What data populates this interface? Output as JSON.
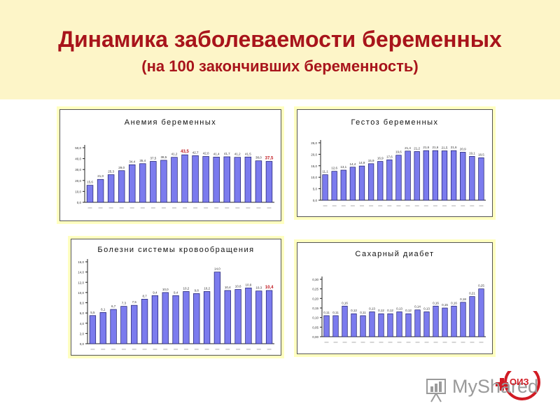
{
  "page": {
    "title": "Динамика заболеваемости беременных",
    "subtitle": "(на 100 закончивших беременность)"
  },
  "watermark": {
    "text": "MyShared",
    "logo_text": "ОИЗ"
  },
  "colors": {
    "bar": "#7b7bee",
    "bar_stroke": "#1b1b6a",
    "title": "#a8141b",
    "header_bg": "#fdf5c8",
    "panel_bg": "#ffffc0"
  },
  "chart_data": [
    {
      "type": "bar",
      "title": "Анемия беременных",
      "ylim": [
        0,
        50
      ],
      "yticks": [
        0,
        10,
        20,
        30,
        40,
        50
      ],
      "ytick_labels": [
        "0,0",
        "10,0",
        "20,0",
        "30,0",
        "40,0",
        "50,0"
      ],
      "values": [
        15.6,
        21.0,
        25.3,
        29.0,
        34.4,
        35.4,
        37.5,
        38.5,
        41.2,
        43.5,
        42.7,
        42.0,
        41.4,
        41.7,
        41.2,
        41.5,
        38.0,
        37.5
      ],
      "labels": [
        "15,6",
        "21,0",
        "25,3",
        "29,0",
        "34,4",
        "35,4",
        "37,5",
        "38,5",
        "41,2",
        "43,5",
        "42,7",
        "42,0",
        "41,4",
        "41,7",
        "41,2",
        "41,5",
        "38,0",
        "37,5"
      ],
      "highlight": [
        9,
        17
      ],
      "grid": false
    },
    {
      "type": "bar",
      "title": "Гестоз беременных",
      "ylim": [
        0,
        25
      ],
      "yticks": [
        0,
        5,
        10,
        15,
        20,
        25
      ],
      "ytick_labels": [
        "0,0",
        "5,0",
        "10,0",
        "15,0",
        "20,0",
        "25,0"
      ],
      "values": [
        11.1,
        12.6,
        13.1,
        14.4,
        14.9,
        15.9,
        16.9,
        17.6,
        19.6,
        21.4,
        21.2,
        21.6,
        21.6,
        21.5,
        21.6,
        20.9,
        19.1,
        18.5
      ],
      "labels": [
        "11,1",
        "12,6",
        "13,1",
        "14,4",
        "14,9",
        "15,9",
        "16,9",
        "17,6",
        "19,6",
        "21,4",
        "21,2",
        "21,6",
        "21,6",
        "21,5",
        "21,6",
        "20,9",
        "19,1",
        "18,5"
      ],
      "highlight": [],
      "grid": false
    },
    {
      "type": "bar",
      "title": "Болезни системы кровообращения",
      "ylim": [
        0,
        16
      ],
      "yticks": [
        0,
        2,
        4,
        6,
        8,
        10,
        12,
        14,
        16
      ],
      "ytick_labels": [
        "0,0",
        "2,0",
        "4,0",
        "6,0",
        "8,0",
        "10,0",
        "12,0",
        "14,0",
        "16,0"
      ],
      "values": [
        5.5,
        6.1,
        6.7,
        7.3,
        7.5,
        8.7,
        9.4,
        10.0,
        9.4,
        10.2,
        9.8,
        10.2,
        14.0,
        10.4,
        10.6,
        10.9,
        10.3,
        10.4
      ],
      "labels": [
        "5,5",
        "6,1",
        "6,7",
        "7,3",
        "7,5",
        "8,7",
        "9,4",
        "10,0",
        "9,4",
        "10,2",
        "9,8",
        "10,2",
        "14,0",
        "10,4",
        "10,6",
        "10,9",
        "10,3",
        "10,4"
      ],
      "highlight": [
        17
      ],
      "grid": false
    },
    {
      "type": "bar",
      "title": "Сахарный диабет",
      "ylim": [
        0,
        0.3
      ],
      "yticks": [
        0,
        0.05,
        0.1,
        0.15,
        0.2,
        0.25,
        0.3
      ],
      "ytick_labels": [
        "0,00",
        "0,05",
        "0,10",
        "0,15",
        "0,20",
        "0,25",
        "0,30"
      ],
      "values": [
        0.11,
        0.11,
        0.16,
        0.12,
        0.11,
        0.13,
        0.12,
        0.12,
        0.13,
        0.12,
        0.14,
        0.13,
        0.16,
        0.15,
        0.16,
        0.18,
        0.21,
        0.25
      ],
      "labels": [
        "0,11",
        "0,11",
        "0,16",
        "0,12",
        "0,11",
        "0,13",
        "0,12",
        "0,12",
        "0,13",
        "0,12",
        "0,14",
        "0,13",
        "0,16",
        "0,15",
        "0,16",
        "0,18",
        "0,21",
        "0,25"
      ],
      "highlight": [],
      "grid": false
    }
  ]
}
